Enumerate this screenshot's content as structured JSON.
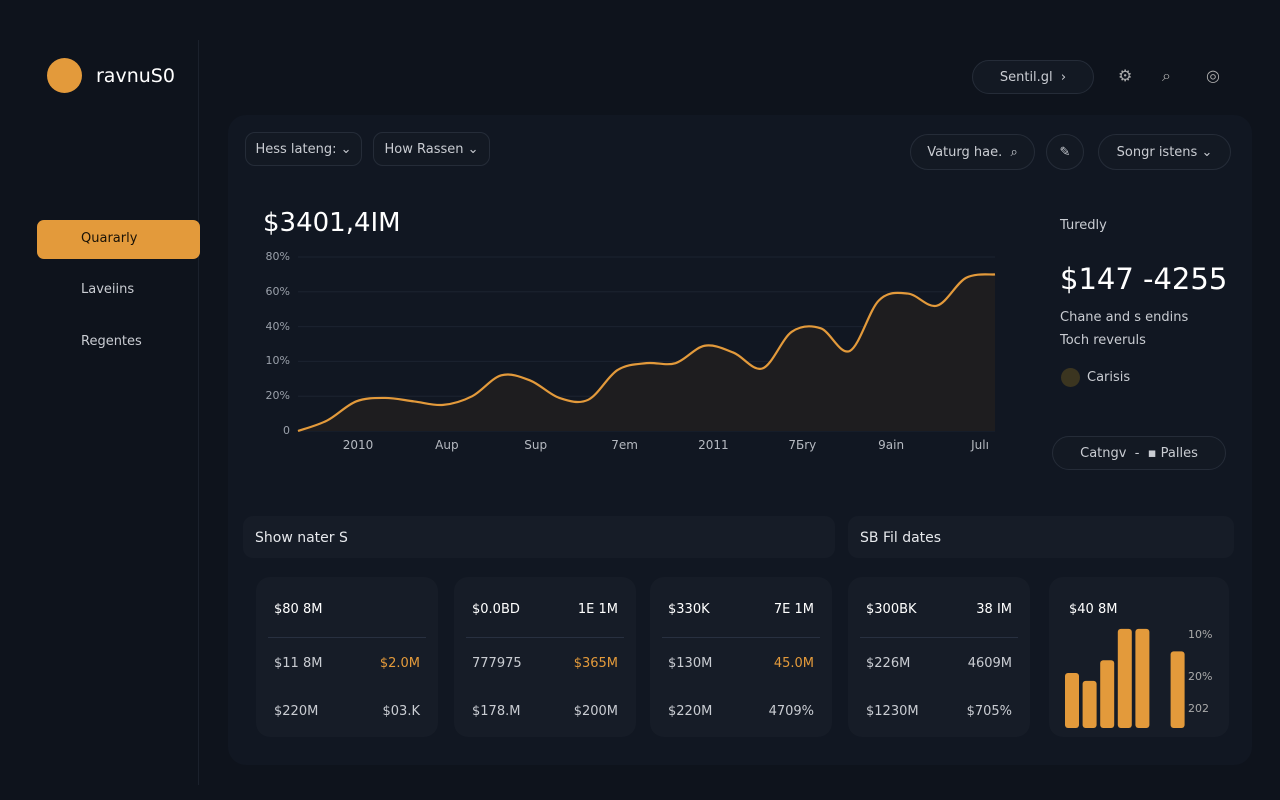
{
  "brand": "ravnuS0",
  "nav": [
    "Quararly",
    "Laveiins",
    "Regentes"
  ],
  "topbar": {
    "search": "Sentil.gl"
  },
  "filters": [
    "Hess lateng:",
    "How Rassen",
    "Vaturg hae.",
    "Songr istens"
  ],
  "chart": {
    "type": "line",
    "title": "$3401,4IM",
    "y_labels": [
      "0",
      "20%",
      "10%",
      "40%",
      "60%",
      "80%"
    ],
    "ylim": [
      0,
      5
    ],
    "categories": [
      "2010",
      "Aup",
      "Sup",
      "7em",
      "2011",
      "7Бry",
      "9ain",
      "Julı"
    ],
    "color": "#e39a3b",
    "values": [
      0,
      0.3,
      0.85,
      0.95,
      0.85,
      0.75,
      1.0,
      1.6,
      1.45,
      0.95,
      0.9,
      1.75,
      1.95,
      1.95,
      2.45,
      2.25,
      1.8,
      2.85,
      2.95,
      2.3,
      3.75,
      3.95,
      3.6,
      4.4,
      4.5
    ]
  },
  "summary": {
    "label": "Turedly",
    "value": "$147 -4255",
    "line1": "Chane and s endins",
    "line2": "Toch reveruls",
    "legend": "Carisis",
    "button_left": "Catngv",
    "button_right": "Palles"
  },
  "sections": [
    "Show nater S",
    "SB Fil dates"
  ],
  "cards": [
    {
      "header": [
        "$80 8M",
        ""
      ],
      "rows": [
        [
          "$11 8M",
          "$2.0M"
        ],
        [
          "$220M",
          "$03.K"
        ]
      ]
    },
    {
      "header": [
        "$0.0BD",
        "1E 1M"
      ],
      "rows": [
        [
          "777975",
          "$365M"
        ],
        [
          "$178.M",
          "$200M"
        ]
      ]
    },
    {
      "header": [
        "$330K",
        "7E 1M"
      ],
      "rows": [
        [
          "$130M",
          "45.0M"
        ],
        [
          "$220M",
          "4709%"
        ]
      ]
    },
    {
      "header": [
        "$300BK",
        "38 IM"
      ],
      "rows": [
        [
          "$226M",
          "4609M"
        ],
        [
          "$1230M",
          "$705%"
        ]
      ]
    }
  ],
  "mini_chart": {
    "type": "bar",
    "title": "$40 8M",
    "labels": [
      "10%",
      "20%",
      "202"
    ],
    "ylim": [
      0,
      110
    ],
    "color": "#e39a3b",
    "values": [
      56,
      48,
      69,
      101,
      101,
      null,
      78
    ]
  }
}
